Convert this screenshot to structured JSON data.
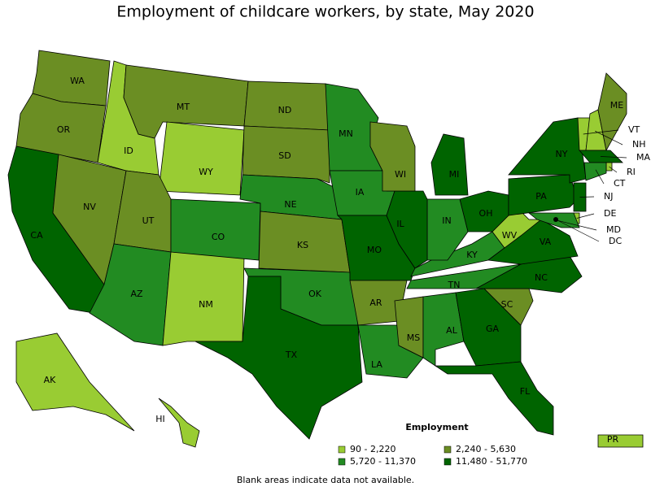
{
  "title": "Employment of childcare workers, by state, May 2020",
  "legend": {
    "title": "Employment",
    "bins": [
      {
        "label": "90 - 2,220",
        "color": "#99cc33"
      },
      {
        "label": "2,240 - 5,630",
        "color": "#6b8e23"
      },
      {
        "label": "5,720 - 11,370",
        "color": "#228b22"
      },
      {
        "label": "11,480 - 51,770",
        "color": "#006400"
      }
    ]
  },
  "states": [
    {
      "abbr": "WA",
      "bin": 1
    },
    {
      "abbr": "OR",
      "bin": 1
    },
    {
      "abbr": "CA",
      "bin": 3
    },
    {
      "abbr": "NV",
      "bin": 1
    },
    {
      "abbr": "ID",
      "bin": 0
    },
    {
      "abbr": "MT",
      "bin": 1
    },
    {
      "abbr": "WY",
      "bin": 0
    },
    {
      "abbr": "UT",
      "bin": 1
    },
    {
      "abbr": "AZ",
      "bin": 2
    },
    {
      "abbr": "NM",
      "bin": 0
    },
    {
      "abbr": "CO",
      "bin": 2
    },
    {
      "abbr": "ND",
      "bin": 1
    },
    {
      "abbr": "SD",
      "bin": 1
    },
    {
      "abbr": "NE",
      "bin": 2
    },
    {
      "abbr": "KS",
      "bin": 1
    },
    {
      "abbr": "OK",
      "bin": 2
    },
    {
      "abbr": "TX",
      "bin": 3
    },
    {
      "abbr": "MN",
      "bin": 2
    },
    {
      "abbr": "IA",
      "bin": 2
    },
    {
      "abbr": "MO",
      "bin": 3
    },
    {
      "abbr": "AR",
      "bin": 1
    },
    {
      "abbr": "LA",
      "bin": 2
    },
    {
      "abbr": "MS",
      "bin": 1
    },
    {
      "abbr": "AL",
      "bin": 2
    },
    {
      "abbr": "GA",
      "bin": 3
    },
    {
      "abbr": "FL",
      "bin": 3
    },
    {
      "abbr": "SC",
      "bin": 1
    },
    {
      "abbr": "NC",
      "bin": 3
    },
    {
      "abbr": "TN",
      "bin": 2
    },
    {
      "abbr": "KY",
      "bin": 2
    },
    {
      "abbr": "VA",
      "bin": 3
    },
    {
      "abbr": "WV",
      "bin": 0
    },
    {
      "abbr": "OH",
      "bin": 3
    },
    {
      "abbr": "IN",
      "bin": 2
    },
    {
      "abbr": "IL",
      "bin": 3
    },
    {
      "abbr": "MI",
      "bin": 3
    },
    {
      "abbr": "WI",
      "bin": 1
    },
    {
      "abbr": "PA",
      "bin": 3
    },
    {
      "abbr": "NY",
      "bin": 3
    },
    {
      "abbr": "VT",
      "bin": 0
    },
    {
      "abbr": "NH",
      "bin": 0
    },
    {
      "abbr": "ME",
      "bin": 1
    },
    {
      "abbr": "MA",
      "bin": 3
    },
    {
      "abbr": "RI",
      "bin": 0
    },
    {
      "abbr": "CT",
      "bin": 2
    },
    {
      "abbr": "NJ",
      "bin": 3
    },
    {
      "abbr": "DE",
      "bin": 0
    },
    {
      "abbr": "MD",
      "bin": 2
    },
    {
      "abbr": "DC",
      "bin": null
    },
    {
      "abbr": "AK",
      "bin": 0
    },
    {
      "abbr": "HI",
      "bin": 0
    },
    {
      "abbr": "PR",
      "bin": 0
    }
  ],
  "note": "Blank areas indicate data not available."
}
